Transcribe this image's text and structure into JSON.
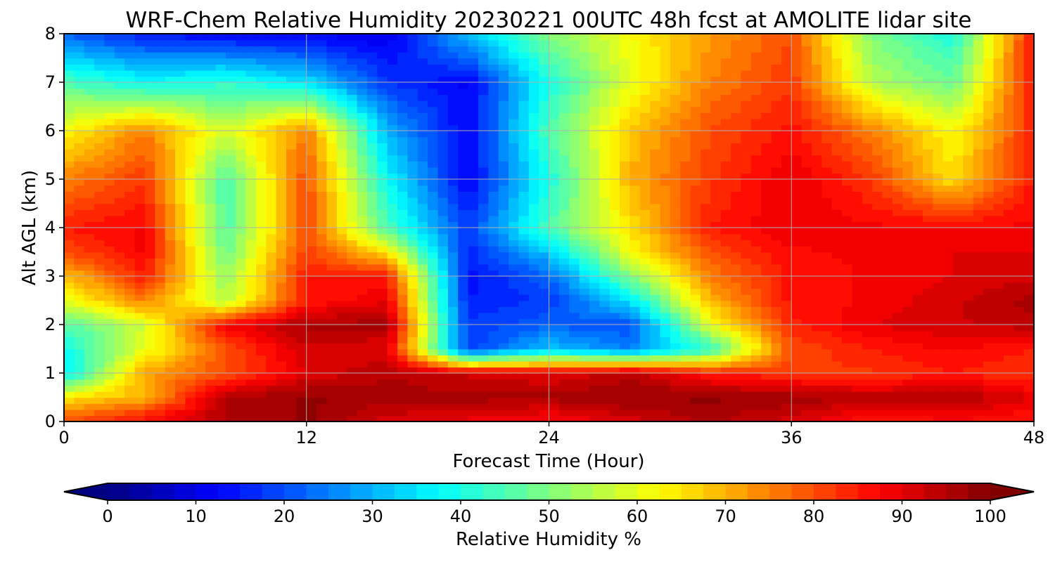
{
  "chart_data": {
    "type": "heatmap",
    "title": "WRF-Chem Relative Humidity 20230221 00UTC 48h fcst at AMOLITE lidar site",
    "xlabel": "Forecast Time (Hour)",
    "ylabel": "Alt AGL (km)",
    "xlim": [
      0,
      48
    ],
    "ylim": [
      0,
      8
    ],
    "x_ticks": [
      0,
      12,
      24,
      36,
      48
    ],
    "y_ticks": [
      0,
      1,
      2,
      3,
      4,
      5,
      6,
      7,
      8
    ],
    "grid": true,
    "colorbar": {
      "label": "Relative Humidity %",
      "colormap": "jet",
      "range": [
        0,
        100
      ],
      "ticks": [
        0,
        10,
        20,
        30,
        40,
        50,
        60,
        70,
        80,
        90,
        100
      ],
      "extend": "both",
      "placement": "bottom"
    },
    "x": [
      0,
      4,
      8,
      12,
      16,
      20,
      24,
      28,
      32,
      36,
      40,
      44,
      48
    ],
    "y": [
      0.1,
      0.5,
      1.0,
      1.5,
      2.0,
      2.5,
      3.0,
      3.5,
      4.0,
      5.0,
      6.0,
      7.0,
      8.0
    ],
    "z": [
      [
        78,
        85,
        95,
        98,
        92,
        90,
        88,
        92,
        96,
        92,
        86,
        88,
        86
      ],
      [
        65,
        70,
        95,
        98,
        96,
        96,
        96,
        98,
        98,
        97,
        94,
        96,
        90
      ],
      [
        35,
        72,
        80,
        90,
        95,
        92,
        90,
        94,
        85,
        82,
        82,
        85,
        82
      ],
      [
        38,
        60,
        80,
        92,
        90,
        18,
        32,
        25,
        42,
        80,
        85,
        88,
        85
      ],
      [
        45,
        58,
        88,
        96,
        96,
        18,
        22,
        20,
        60,
        84,
        90,
        92,
        94
      ],
      [
        60,
        75,
        55,
        85,
        90,
        15,
        18,
        35,
        70,
        86,
        88,
        92,
        96
      ],
      [
        68,
        85,
        52,
        85,
        85,
        14,
        22,
        50,
        75,
        86,
        88,
        90,
        92
      ],
      [
        80,
        88,
        48,
        82,
        65,
        16,
        32,
        62,
        80,
        87,
        88,
        90,
        90
      ],
      [
        85,
        88,
        45,
        80,
        45,
        18,
        45,
        65,
        85,
        90,
        88,
        88,
        88
      ],
      [
        75,
        82,
        45,
        80,
        38,
        12,
        40,
        70,
        82,
        90,
        82,
        65,
        86
      ],
      [
        62,
        75,
        58,
        75,
        30,
        12,
        45,
        68,
        80,
        86,
        75,
        62,
        84
      ],
      [
        45,
        38,
        42,
        35,
        18,
        12,
        40,
        60,
        75,
        82,
        55,
        48,
        86
      ],
      [
        22,
        15,
        12,
        12,
        10,
        32,
        50,
        62,
        72,
        80,
        50,
        40,
        86
      ]
    ]
  }
}
